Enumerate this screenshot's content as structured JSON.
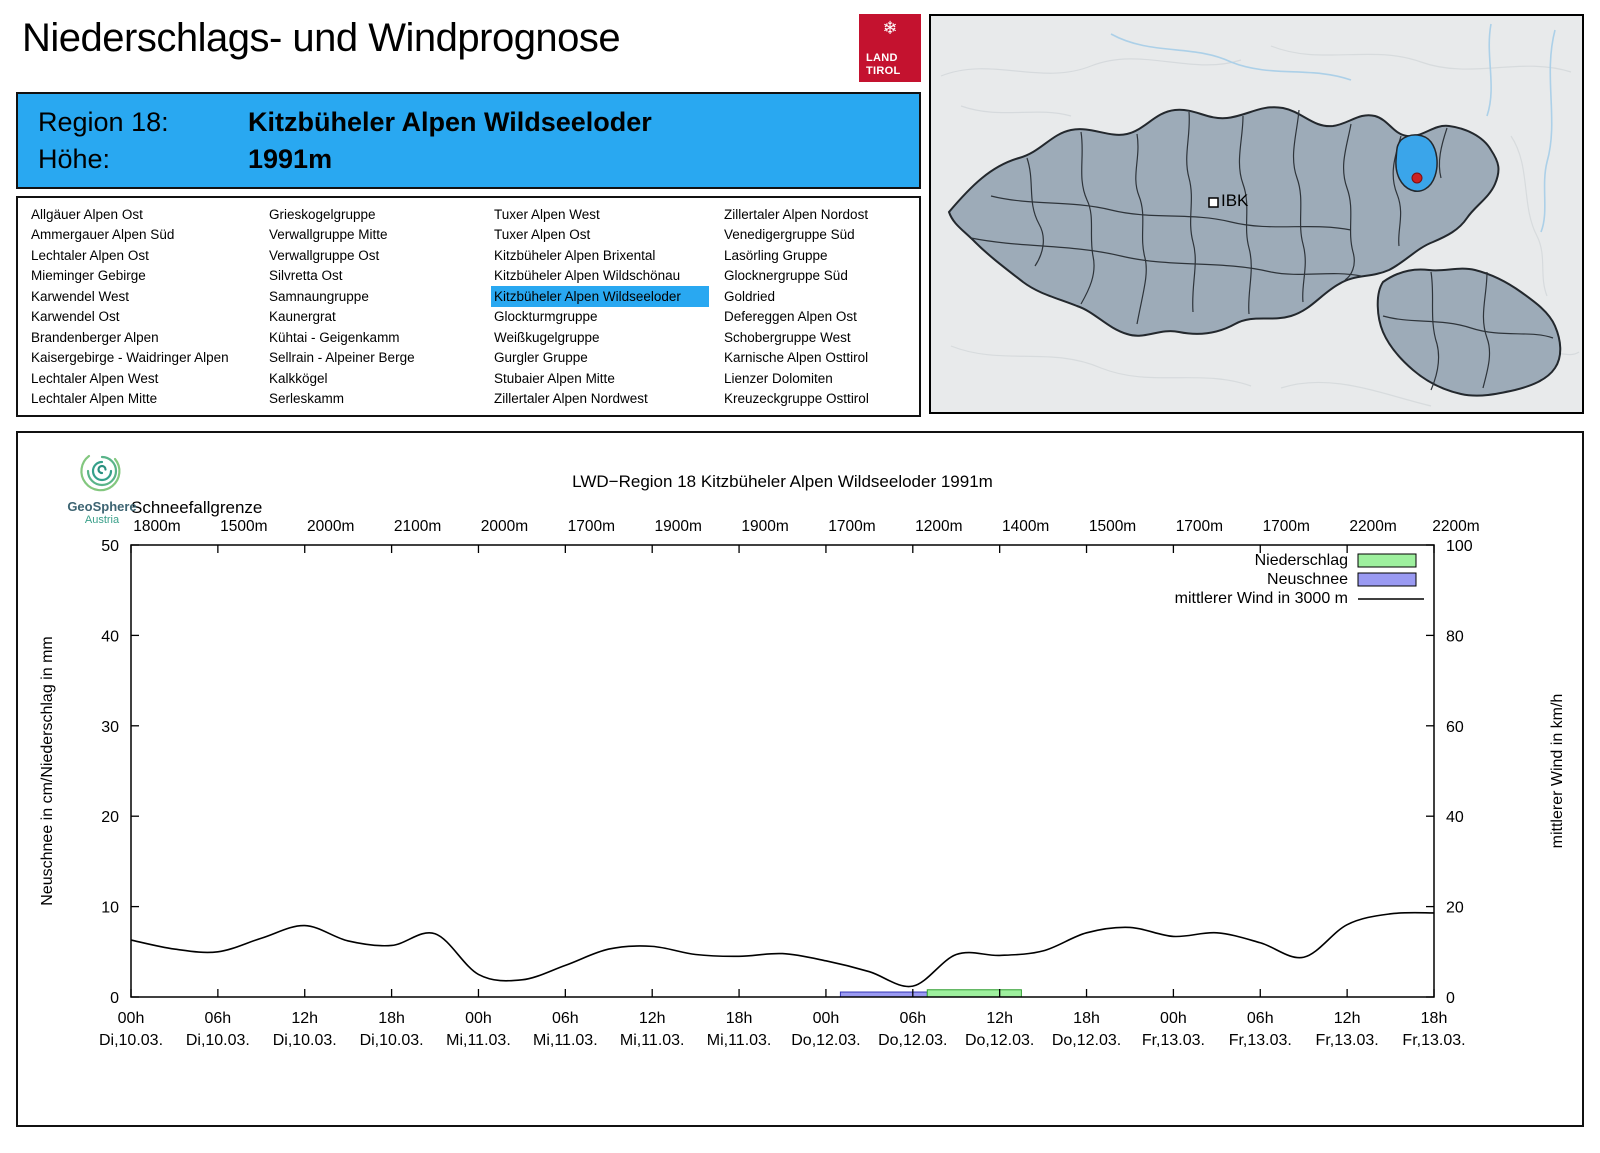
{
  "header": {
    "title": "Niederschlags- und Windprognose",
    "logo": {
      "snowflake_icon": "❄",
      "line1": "LAND",
      "line2": "TIROL"
    }
  },
  "region_info": {
    "region_label": "Region 18:",
    "region_name": "Kitzbüheler Alpen Wildseeloder",
    "hoehe_label": "Höhe:",
    "hoehe_value": "1991m"
  },
  "region_list": {
    "selected": "Kitzbüheler Alpen Wildseeloder",
    "columns": [
      [
        "Allgäuer Alpen Ost",
        "Ammergauer Alpen Süd",
        "Lechtaler Alpen Ost",
        "Mieminger Gebirge",
        "Karwendel West",
        "Karwendel Ost",
        "Brandenberger Alpen",
        "Kaisergebirge - Waidringer Alpen",
        "Lechtaler Alpen West",
        "Lechtaler Alpen Mitte"
      ],
      [
        "Grieskogelgruppe",
        "Verwallgruppe Mitte",
        "Verwallgruppe Ost",
        "Silvretta Ost",
        "Samnaungruppe",
        "Kaunergrat",
        "Kühtai - Geigenkamm",
        "Sellrain - Alpeiner Berge",
        "Kalkkögel",
        "Serleskamm"
      ],
      [
        "Tuxer Alpen West",
        "Tuxer Alpen Ost",
        "Kitzbüheler Alpen Brixental",
        "Kitzbüheler Alpen Wildschönau",
        "Kitzbüheler Alpen Wildseeloder",
        "Glockturmgruppe",
        "Weißkugelgruppe",
        "Gurgler Gruppe",
        "Stubaier Alpen Mitte",
        "Zillertaler Alpen Nordwest"
      ],
      [
        "Zillertaler Alpen Nordost",
        "Venedigergruppe Süd",
        "Lasörling Gruppe",
        "Glocknergruppe Süd",
        "Goldried",
        "Defereggen Alpen Ost",
        "Schobergruppe West",
        "Karnische Alpen Osttirol",
        "Lienzer Dolomiten",
        "Kreuzeckgruppe Osttirol"
      ]
    ]
  },
  "map": {
    "city_label": "IBK"
  },
  "chart_data": {
    "type": "line",
    "title": "LWD−Region 18 Kitzbüheler Alpen Wildseeloder 1991m",
    "brand": {
      "name": "GeoSphere",
      "country": "Austria"
    },
    "schneefallgrenze_label": "Schneefallgrenze",
    "schneefallgrenze": [
      "1800m",
      "1500m",
      "2000m",
      "2100m",
      "2000m",
      "1700m",
      "1900m",
      "1900m",
      "1700m",
      "1200m",
      "1400m",
      "1500m",
      "1700m",
      "1700m",
      "2200m",
      "2200m"
    ],
    "ylabel_left": "Neuschnee in cm/Niederschlag in mm",
    "ylabel_right": "mittlerer Wind in km/h",
    "ylim_left": [
      0,
      50
    ],
    "yticks_left": [
      0,
      10,
      20,
      30,
      40,
      50
    ],
    "ylim_right": [
      0,
      100
    ],
    "yticks_right": [
      0,
      20,
      40,
      60,
      80,
      100
    ],
    "xlim_hours": [
      0,
      90
    ],
    "x_ticks": [
      {
        "time": "00h",
        "date": "Di,10.03."
      },
      {
        "time": "06h",
        "date": "Di,10.03."
      },
      {
        "time": "12h",
        "date": "Di,10.03."
      },
      {
        "time": "18h",
        "date": "Di,10.03."
      },
      {
        "time": "00h",
        "date": "Mi,11.03."
      },
      {
        "time": "06h",
        "date": "Mi,11.03."
      },
      {
        "time": "12h",
        "date": "Mi,11.03."
      },
      {
        "time": "18h",
        "date": "Mi,11.03."
      },
      {
        "time": "00h",
        "date": "Do,12.03."
      },
      {
        "time": "06h",
        "date": "Do,12.03."
      },
      {
        "time": "12h",
        "date": "Do,12.03."
      },
      {
        "time": "18h",
        "date": "Do,12.03."
      },
      {
        "time": "00h",
        "date": "Fr,13.03."
      },
      {
        "time": "06h",
        "date": "Fr,13.03."
      },
      {
        "time": "12h",
        "date": "Fr,13.03."
      },
      {
        "time": "18h",
        "date": "Fr,13.03."
      }
    ],
    "legend": [
      {
        "label": "Niederschlag",
        "type": "box",
        "fill": "#9ef09e",
        "stroke": "#2f9e2f"
      },
      {
        "label": "Neuschnee",
        "type": "box",
        "fill": "#9a9af2",
        "stroke": "#3535b5"
      },
      {
        "label": "mittlerer Wind in 3000 m",
        "type": "line",
        "stroke": "#000000"
      }
    ],
    "series": {
      "wind_kmh": {
        "hours": [
          0,
          3,
          6,
          9,
          12,
          15,
          18,
          21,
          24,
          27,
          30,
          33,
          36,
          39,
          42,
          45,
          48,
          51,
          54,
          57,
          60,
          63,
          66,
          69,
          72,
          75,
          78,
          81,
          84,
          87,
          90
        ],
        "values": [
          12.6,
          10.6,
          10.0,
          13.0,
          15.8,
          12.4,
          11.4,
          14.0,
          5.0,
          3.8,
          7.0,
          10.6,
          11.2,
          9.4,
          9.0,
          9.6,
          8.0,
          5.6,
          2.4,
          9.4,
          9.2,
          10.2,
          14.2,
          15.4,
          13.4,
          14.2,
          12.0,
          8.8,
          16.0,
          18.4,
          18.6
        ]
      },
      "niederschlag_mm": [
        {
          "from_h": 55,
          "to_h": 61.5,
          "value": 0.8
        }
      ],
      "neuschnee_cm": [
        {
          "from_h": 49,
          "to_h": 55,
          "value": 0.55
        }
      ]
    }
  }
}
